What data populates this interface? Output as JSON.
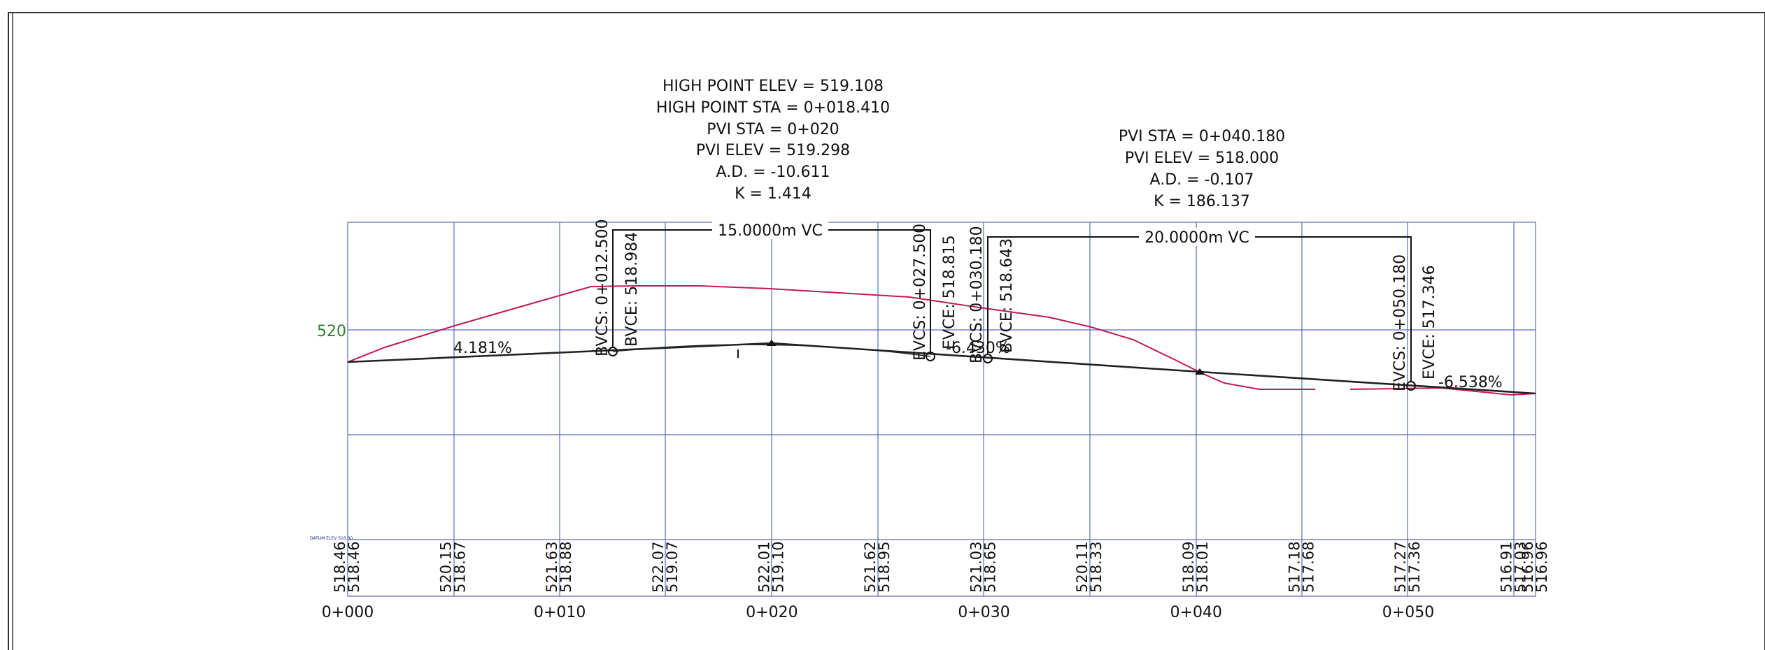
{
  "profile": {
    "y_tick_label": "520",
    "y_label_color": "#2e7d32",
    "grid_color": "#5c6bc0",
    "tangent_color": "#222222",
    "ground_color": "#c2185b",
    "corner_stamp": "DATUM ELEV 516.00",
    "pvi1_info": [
      "HIGH POINT ELEV = 519.108",
      "HIGH POINT STA = 0+018.410",
      "PVI STA = 0+020",
      "PVI ELEV = 519.298",
      "A.D. = -10.611",
      "K = 1.414"
    ],
    "pvi2_info": [
      "PVI STA = 0+040.180",
      "PVI ELEV = 518.000",
      "A.D. = -0.107",
      "K = 186.137"
    ],
    "vc1_label": "15.0000m VC",
    "vc2_label": "20.0000m VC",
    "grade1": "4.181%",
    "grade2": "-6.430%",
    "grade3": "-6.538%",
    "bvcs1": "BVCS: 0+012.500",
    "bvce1": "BVCE: 518.984",
    "evcs1": "EVCS: 0+027.500",
    "evce1": "EVCE: 518.815",
    "bvcs2": "BVCS: 0+030.180",
    "bvce2": "BVCE: 518.643",
    "evcs2": "EVCS: 0+050.180",
    "evce2": "EVCE: 517.346",
    "stations": [
      "0+000",
      "0+010",
      "0+020",
      "0+030",
      "0+040",
      "0+050"
    ],
    "elevation_pairs": [
      {
        "existing": "518.46",
        "design": "518.46"
      },
      {
        "existing": "520.15",
        "design": "518.67"
      },
      {
        "existing": "521.63",
        "design": "518.88"
      },
      {
        "existing": "522.07",
        "design": "519.07"
      },
      {
        "existing": "522.01",
        "design": "519.10"
      },
      {
        "existing": "521.62",
        "design": "518.95"
      },
      {
        "existing": "521.03",
        "design": "518.65"
      },
      {
        "existing": "520.11",
        "design": "518.33"
      },
      {
        "existing": "518.09",
        "design": "518.01"
      },
      {
        "existing": "517.18",
        "design": "517.68"
      },
      {
        "existing": "517.27",
        "design": "517.36"
      },
      {
        "existing": "516.91",
        "design": "517.03"
      },
      {
        "existing": "516.96",
        "design": "516.96"
      }
    ]
  }
}
